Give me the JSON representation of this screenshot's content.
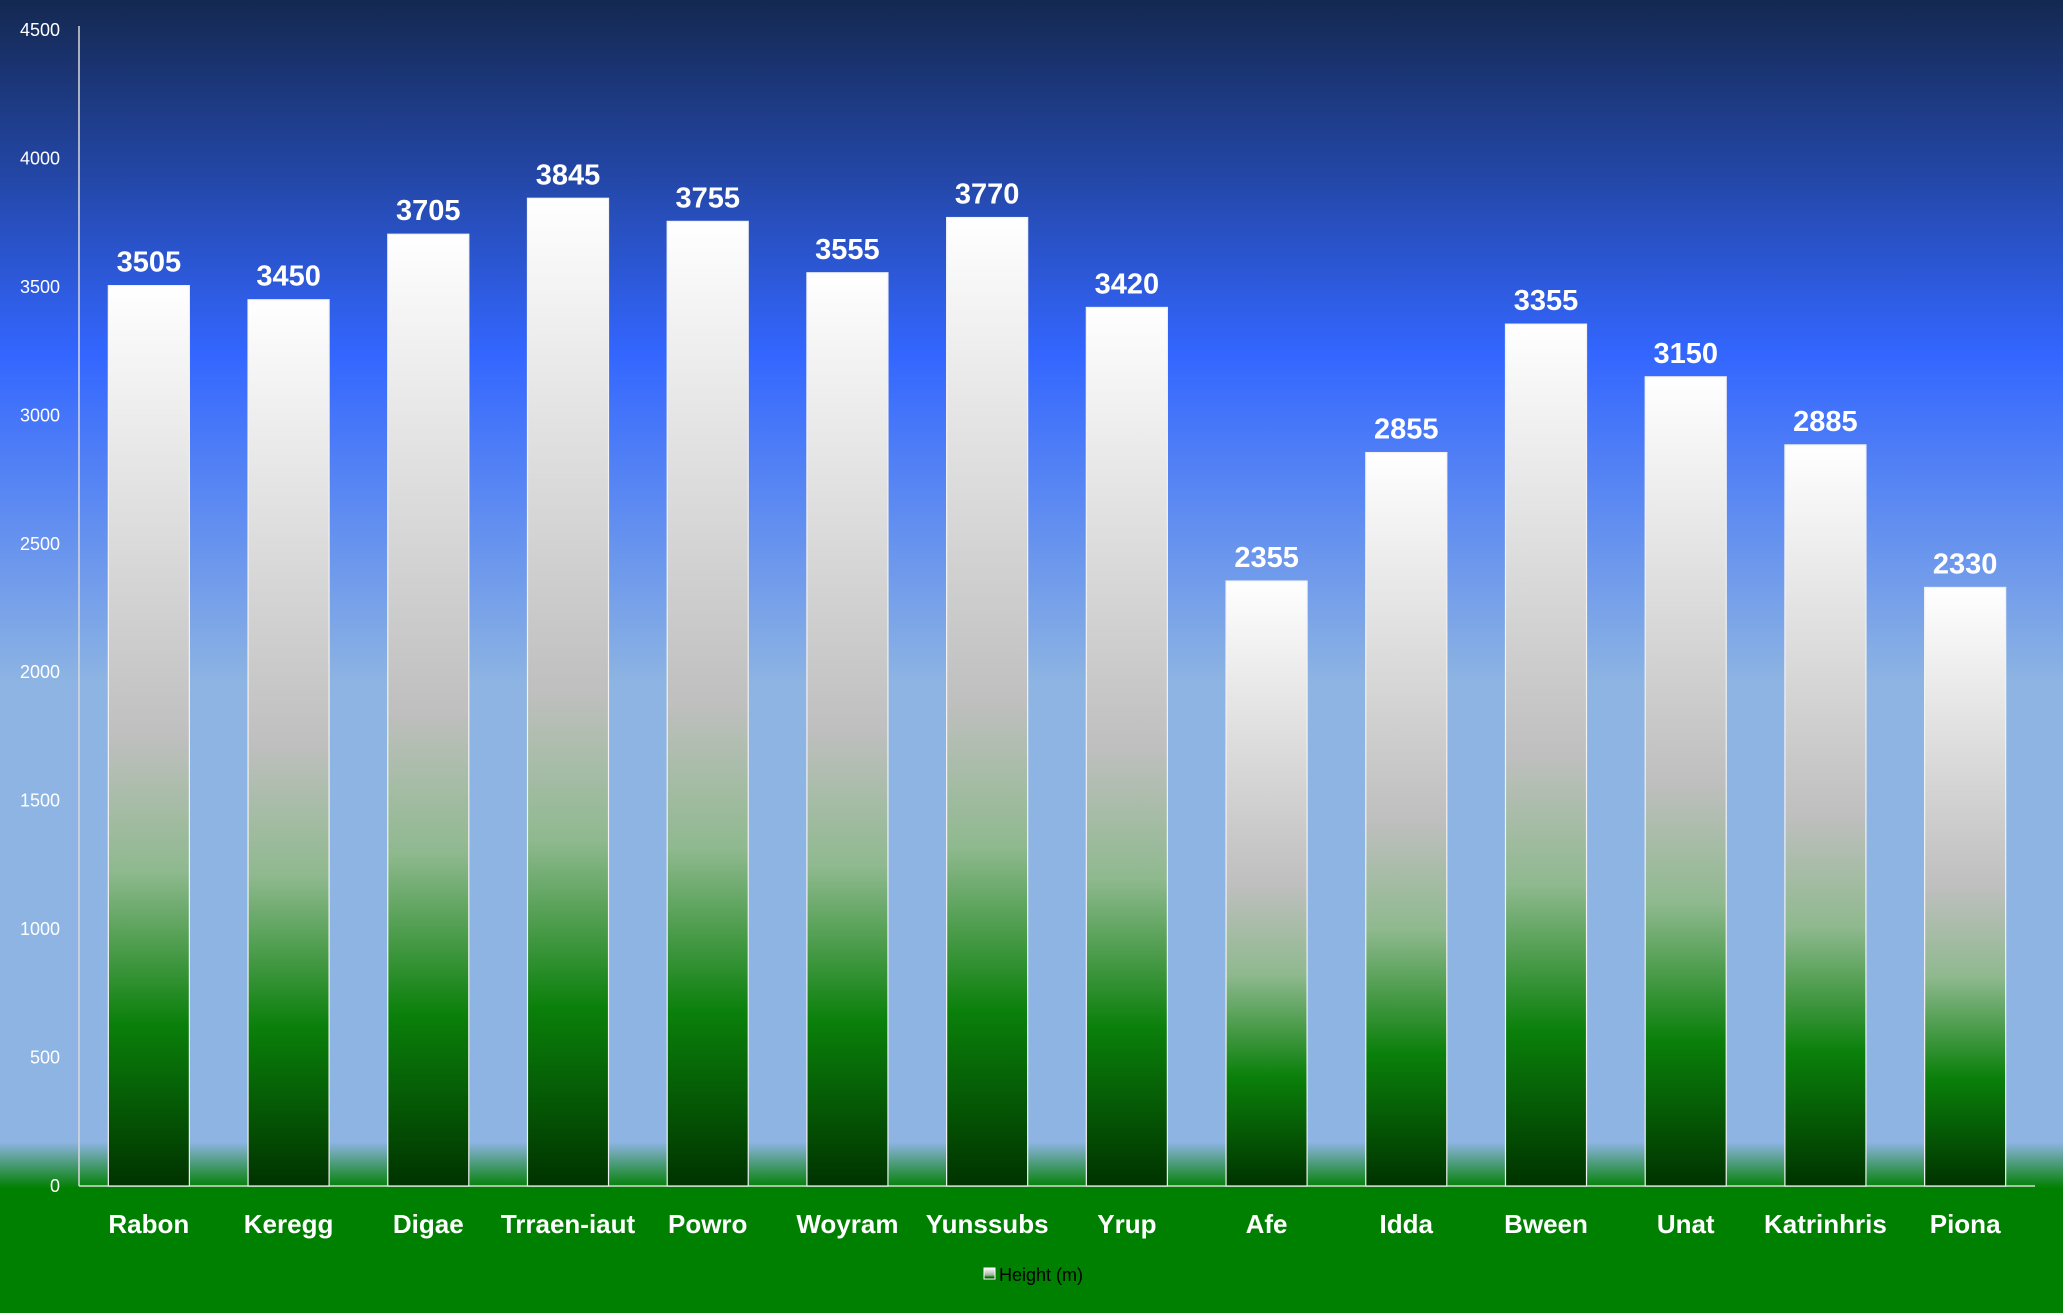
{
  "chart_data": {
    "type": "bar",
    "categories": [
      "Rabon",
      "Keregg",
      "Digae",
      "Trraen-iaut",
      "Powro",
      "Woyram",
      "Yunssubs",
      "Yrup",
      "Afe",
      "Idda",
      "Bween",
      "Unat",
      "Katrinhris",
      "Piona"
    ],
    "series": [
      {
        "name": "Height (m)",
        "values": [
          3505,
          3450,
          3705,
          3845,
          3755,
          3555,
          3770,
          3420,
          2355,
          2855,
          3355,
          3150,
          2885,
          2330
        ]
      }
    ],
    "ylim": [
      0,
      4500
    ],
    "yticks": [
      0,
      500,
      1000,
      1500,
      2000,
      2500,
      3000,
      3500,
      4000,
      4500
    ],
    "data_labels": true,
    "grid": false,
    "legend": "bottom",
    "colors": {
      "sky_top": "#142850",
      "sky_mid": "#3366ff",
      "sky_low": "#8db4e2",
      "ground": "#008000",
      "bar_top": "#ffffff",
      "bar_mid": "#bfbfbf",
      "bar_green": "#4d9f4d",
      "bar_bottom": "#003300"
    }
  }
}
